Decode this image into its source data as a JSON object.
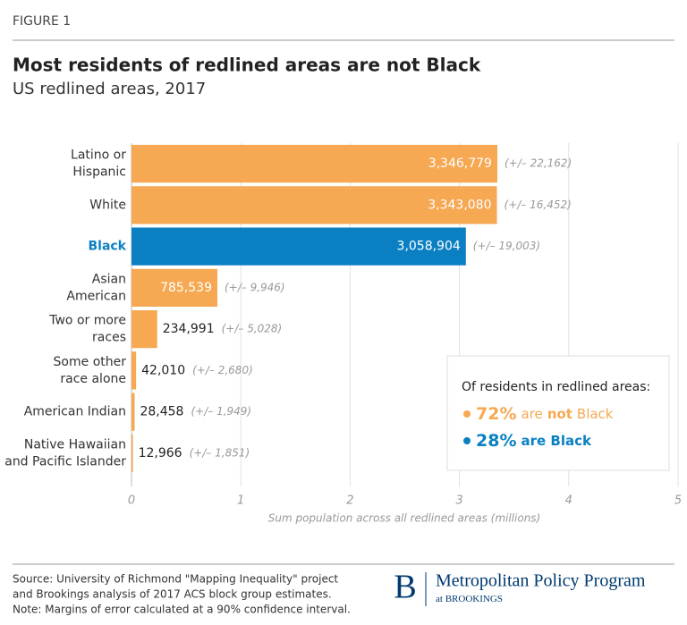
{
  "figure_label": "FIGURE 1",
  "chart_data": {
    "type": "bar",
    "orientation": "horizontal",
    "title": "Most residents of redlined areas are not Black",
    "subtitle": "US redlined areas, 2017",
    "categories": [
      "Latino or\nHispanic",
      "White",
      "Black",
      "Asian\nAmerican",
      "Two or more\nraces",
      "Some other\nrace alone",
      "American Indian",
      "Native Hawaiian\nand Pacific Islander"
    ],
    "values": [
      3.346779,
      3.34308,
      3.058904,
      0.785539,
      0.234991,
      0.04201,
      0.028458,
      0.012966
    ],
    "value_labels": [
      "3,346,779",
      "3,343,080",
      "3,058,904",
      "785,539",
      "234,991",
      "42,010",
      "28,458",
      "12,966"
    ],
    "errors": [
      0.022162,
      0.016452,
      0.019003,
      0.009946,
      0.005028,
      0.00268,
      0.001949,
      0.001851
    ],
    "error_labels": [
      "(+/– 22,162)",
      "(+/– 16,452)",
      "(+/– 19,003)",
      "(+/– 9,946)",
      "(+/– 5,028)",
      "(+/– 2,680)",
      "(+/– 1,949)",
      "(+/– 1,851)"
    ],
    "colors": [
      "#f6a852",
      "#f6a852",
      "#0a80c3",
      "#f6a852",
      "#f6a852",
      "#f6a852",
      "#f6a852",
      "#f6a852"
    ],
    "xlim": [
      0,
      5
    ],
    "xticks": [
      0,
      1,
      2,
      3,
      4,
      5
    ],
    "grid": true,
    "x_label": "Sum population across all redlined areas (millions)",
    "callout": {
      "title": "Of residents in redlined areas:",
      "items": [
        {
          "value": 72,
          "label": "72%",
          "parts": [
            "are",
            "not",
            "Black"
          ],
          "color": "#f6a852"
        },
        {
          "value": 28,
          "label": "28%",
          "parts": [
            "are Black"
          ],
          "color": "#0a80c3"
        }
      ]
    }
  },
  "footer": {
    "source": [
      "Source: University of Richmond \"Mapping Inequality\" project",
      "and Brookings analysis of 2017 ACS block group estimates.",
      "Note: Margins of error calculated at a 90% confidence interval."
    ],
    "logo": "B",
    "program": "Metropolitan Policy Program",
    "org_prefix": "at",
    "org": "BROOKINGS"
  }
}
